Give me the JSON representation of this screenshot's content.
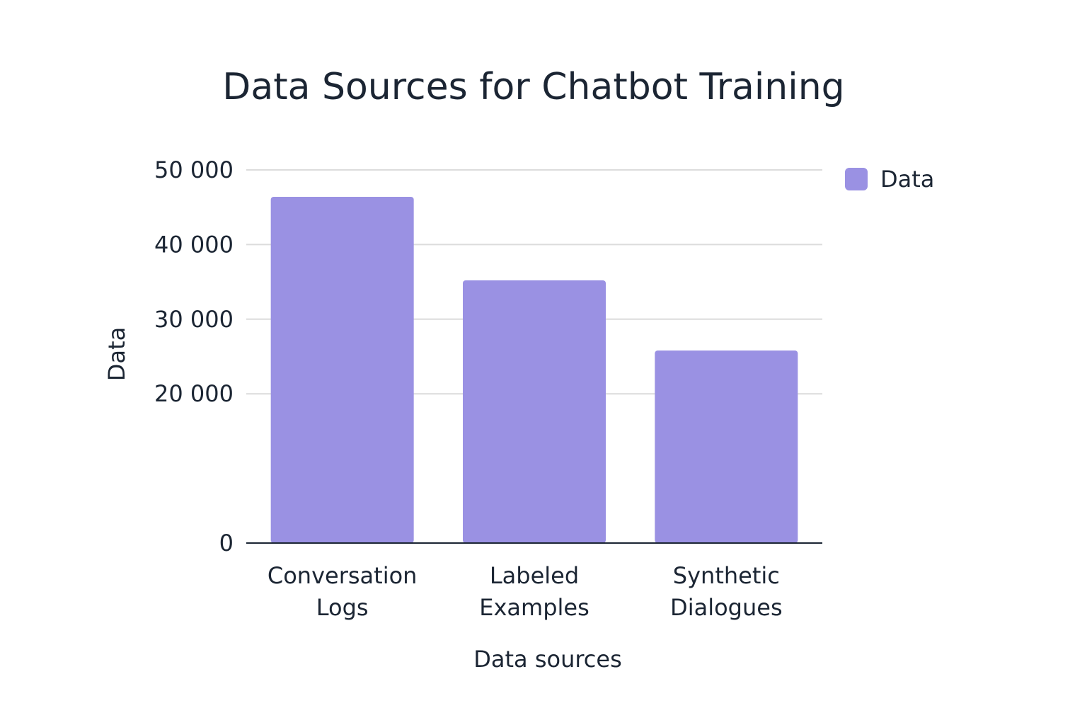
{
  "chart_data": {
    "type": "bar",
    "title": "Data Sources for Chatbot Training",
    "xlabel": "Data sources",
    "ylabel": "Data",
    "categories": [
      [
        "Conversation",
        "Logs"
      ],
      [
        "Labeled",
        "Examples"
      ],
      [
        "Synthetic",
        "Dialogues"
      ]
    ],
    "series": [
      {
        "name": "Data",
        "values": [
          46400,
          35200,
          25800
        ]
      }
    ],
    "ylim": [
      0,
      50000
    ],
    "yticks": [
      0,
      20000,
      30000,
      40000,
      50000
    ],
    "ytick_labels": [
      "0",
      "20 000",
      "30 000",
      "40 000",
      "50 000"
    ],
    "bar_color": "#9a91e3",
    "grid": true,
    "legend_position": "top-right"
  }
}
